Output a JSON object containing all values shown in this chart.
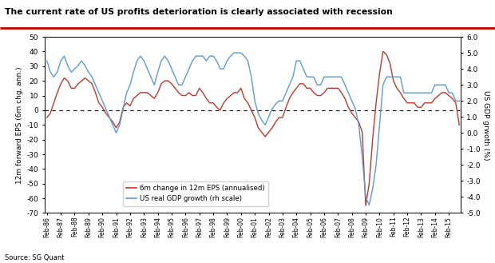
{
  "title": "The current rate of US profits deterioration is clearly associated with recession",
  "ylabel_left": "12m forward EPS (6m chg, ann.)",
  "ylabel_right": "US GDP grwoth (%)",
  "source": "Source: SG Quant",
  "left_ylim": [
    -70,
    50
  ],
  "right_ylim": [
    -5.0,
    6.0
  ],
  "left_yticks": [
    -70,
    -60,
    -50,
    -40,
    -30,
    -20,
    -10,
    0,
    10,
    20,
    30,
    40,
    50
  ],
  "right_yticks": [
    -5.0,
    -4.0,
    -3.0,
    -2.0,
    -1.0,
    0.0,
    1.0,
    2.0,
    3.0,
    4.0,
    5.0,
    6.0
  ],
  "line1_color": "#c0392b",
  "line2_color": "#5b9bd5",
  "legend_labels": [
    "6m change in 12m EPS (annualised)",
    "US real GDP growth (rh scale)"
  ],
  "title_underline_color": "#c00000",
  "eps_x": [
    1986.17,
    1986.42,
    1986.67,
    1986.92,
    1987.17,
    1987.42,
    1987.67,
    1987.92,
    1988.17,
    1988.42,
    1988.67,
    1988.92,
    1989.17,
    1989.42,
    1989.67,
    1989.92,
    1990.17,
    1990.42,
    1990.67,
    1990.92,
    1991.17,
    1991.42,
    1991.67,
    1991.92,
    1992.17,
    1992.42,
    1992.67,
    1992.92,
    1993.17,
    1993.42,
    1993.67,
    1993.92,
    1994.17,
    1994.42,
    1994.67,
    1994.92,
    1995.17,
    1995.42,
    1995.67,
    1995.92,
    1996.17,
    1996.42,
    1996.67,
    1996.92,
    1997.17,
    1997.42,
    1997.67,
    1997.92,
    1998.17,
    1998.42,
    1998.67,
    1998.92,
    1999.17,
    1999.42,
    1999.67,
    1999.92,
    2000.17,
    2000.42,
    2000.67,
    2000.92,
    2001.17,
    2001.42,
    2001.67,
    2001.92,
    2002.17,
    2002.42,
    2002.67,
    2002.92,
    2003.17,
    2003.42,
    2003.67,
    2003.92,
    2004.17,
    2004.42,
    2004.67,
    2004.92,
    2005.17,
    2005.42,
    2005.67,
    2005.92,
    2006.17,
    2006.42,
    2006.67,
    2006.92,
    2007.17,
    2007.42,
    2007.67,
    2007.92,
    2008.17,
    2008.42,
    2008.67,
    2008.92,
    2009.17,
    2009.42,
    2009.67,
    2009.92,
    2010.17,
    2010.42,
    2010.67,
    2010.92,
    2011.17,
    2011.42,
    2011.67,
    2011.92,
    2012.17,
    2012.42,
    2012.67,
    2012.92,
    2013.17,
    2013.42,
    2013.67,
    2013.92,
    2014.17,
    2014.42,
    2014.67,
    2014.92,
    2015.17,
    2015.42,
    2015.67,
    2015.92
  ],
  "eps_y": [
    -5,
    -2,
    5,
    12,
    18,
    22,
    20,
    15,
    15,
    18,
    20,
    22,
    20,
    18,
    12,
    5,
    2,
    -2,
    -5,
    -8,
    -12,
    -8,
    2,
    5,
    3,
    8,
    10,
    12,
    12,
    12,
    10,
    8,
    12,
    18,
    20,
    20,
    18,
    15,
    12,
    10,
    10,
    12,
    10,
    10,
    15,
    12,
    8,
    5,
    5,
    2,
    0,
    5,
    8,
    10,
    12,
    12,
    15,
    8,
    5,
    0,
    -5,
    -12,
    -15,
    -18,
    -15,
    -12,
    -8,
    -5,
    -5,
    2,
    8,
    12,
    15,
    18,
    18,
    15,
    15,
    12,
    10,
    10,
    12,
    15,
    15,
    15,
    15,
    12,
    8,
    2,
    -2,
    -5,
    -8,
    -15,
    -65,
    -50,
    -20,
    5,
    25,
    40,
    38,
    32,
    20,
    15,
    12,
    8,
    5,
    5,
    5,
    2,
    2,
    5,
    5,
    5,
    8,
    10,
    12,
    12,
    10,
    8,
    5,
    -10
  ],
  "gdp_x": [
    1986.17,
    1986.42,
    1986.67,
    1986.92,
    1987.17,
    1987.42,
    1987.67,
    1987.92,
    1988.17,
    1988.42,
    1988.67,
    1988.92,
    1989.17,
    1989.42,
    1989.67,
    1989.92,
    1990.17,
    1990.42,
    1990.67,
    1990.92,
    1991.17,
    1991.42,
    1991.67,
    1991.92,
    1992.17,
    1992.42,
    1992.67,
    1992.92,
    1993.17,
    1993.42,
    1993.67,
    1993.92,
    1994.17,
    1994.42,
    1994.67,
    1994.92,
    1995.17,
    1995.42,
    1995.67,
    1995.92,
    1996.17,
    1996.42,
    1996.67,
    1996.92,
    1997.17,
    1997.42,
    1997.67,
    1997.92,
    1998.17,
    1998.42,
    1998.67,
    1998.92,
    1999.17,
    1999.42,
    1999.67,
    1999.92,
    2000.17,
    2000.42,
    2000.67,
    2000.92,
    2001.17,
    2001.42,
    2001.67,
    2001.92,
    2002.17,
    2002.42,
    2002.67,
    2002.92,
    2003.17,
    2003.42,
    2003.67,
    2003.92,
    2004.17,
    2004.42,
    2004.67,
    2004.92,
    2005.17,
    2005.42,
    2005.67,
    2005.92,
    2006.17,
    2006.42,
    2006.67,
    2006.92,
    2007.17,
    2007.42,
    2007.67,
    2007.92,
    2008.17,
    2008.42,
    2008.67,
    2008.92,
    2009.17,
    2009.42,
    2009.67,
    2009.92,
    2010.17,
    2010.42,
    2010.67,
    2010.92,
    2011.17,
    2011.42,
    2011.67,
    2011.92,
    2012.17,
    2012.42,
    2012.67,
    2012.92,
    2013.17,
    2013.42,
    2013.67,
    2013.92,
    2014.17,
    2014.42,
    2014.67,
    2014.92,
    2015.17,
    2015.42,
    2015.67,
    2015.92
  ],
  "gdp_y": [
    4.5,
    3.8,
    3.5,
    3.8,
    4.5,
    4.8,
    4.2,
    3.8,
    4.0,
    4.2,
    4.5,
    4.2,
    3.8,
    3.5,
    3.0,
    2.5,
    2.0,
    1.5,
    1.0,
    0.5,
    0.0,
    0.5,
    1.5,
    2.5,
    3.0,
    3.8,
    4.5,
    4.8,
    4.5,
    4.0,
    3.5,
    3.0,
    3.8,
    4.5,
    4.8,
    4.5,
    4.0,
    3.5,
    3.0,
    3.0,
    3.5,
    4.0,
    4.5,
    4.8,
    4.8,
    4.8,
    4.5,
    4.8,
    4.8,
    4.5,
    4.0,
    4.0,
    4.5,
    4.8,
    5.0,
    5.0,
    5.0,
    4.8,
    4.5,
    3.5,
    2.0,
    1.2,
    0.8,
    0.5,
    1.0,
    1.5,
    1.8,
    2.0,
    2.0,
    2.5,
    3.0,
    3.5,
    4.5,
    4.5,
    4.0,
    3.5,
    3.5,
    3.5,
    3.0,
    3.0,
    3.5,
    3.5,
    3.5,
    3.5,
    3.5,
    3.5,
    3.0,
    2.5,
    2.0,
    1.5,
    0.5,
    -1.5,
    -4.0,
    -4.5,
    -3.5,
    -2.0,
    0.5,
    3.0,
    3.5,
    3.5,
    3.5,
    3.5,
    3.5,
    2.5,
    2.5,
    2.5,
    2.5,
    2.5,
    2.5,
    2.5,
    2.5,
    2.5,
    3.0,
    3.0,
    3.0,
    3.0,
    2.5,
    2.5,
    2.0,
    2.0
  ]
}
